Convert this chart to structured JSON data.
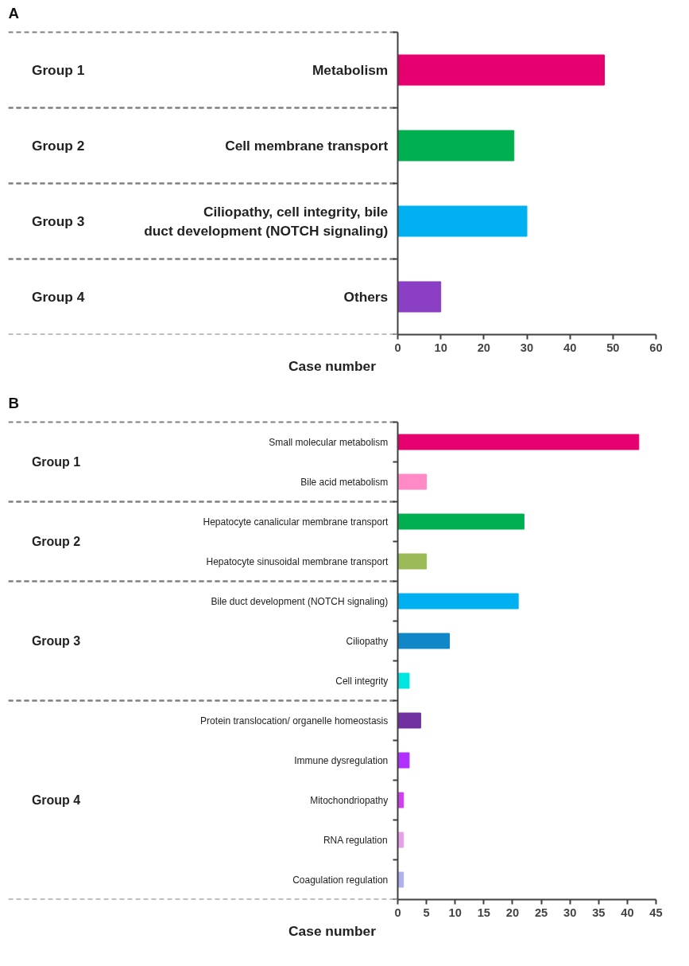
{
  "chart_data": [
    {
      "type": "bar",
      "orientation": "horizontal",
      "xlabel": "Case number",
      "xlim": [
        0,
        60
      ],
      "xticks": [
        0,
        10,
        20,
        30,
        40,
        50,
        60
      ],
      "grid": false,
      "categories": [
        "Metabolism",
        "Cell membrane transport",
        "Ciliopathy, cell integrity, bile duct development (NOTCH signaling)",
        "Others"
      ],
      "series": [
        {
          "colors": [
            "#e6006f",
            null,
            null,
            null
          ],
          "values": [
            48,
            null,
            null,
            null
          ]
        },
        {
          "colors": [
            null,
            "#00b050",
            null,
            null
          ],
          "values": [
            null,
            27,
            null,
            null
          ]
        },
        {
          "colors": [
            null,
            null,
            "#00b0f0",
            null
          ],
          "values": [
            null,
            null,
            30,
            null
          ]
        },
        {
          "colors": [
            null,
            null,
            null,
            "#8b3fc4"
          ],
          "values": [
            null,
            null,
            null,
            10
          ]
        }
      ],
      "annotations": [
        "A",
        "Group 1",
        "Group 2",
        "Group 3",
        "Group 4"
      ]
    },
    {
      "type": "bar",
      "orientation": "horizontal",
      "xlabel": "Case number",
      "xlim": [
        0,
        45
      ],
      "xticks": [
        0,
        5,
        10,
        15,
        20,
        25,
        30,
        35,
        40,
        45
      ],
      "grid": false,
      "categories": [
        "Small molecular metabolism",
        "Bile acid metabolism",
        "Hepatocyte canalicular membrane transport",
        "Hepatocyte sinusoidal membrane transport",
        "Bile duct development (NOTCH signaling)",
        "Ciliopathy",
        "Cell integrity",
        "Protein translocation/ organelle homeostasis",
        "Immune dysregulation",
        "Mitochondriopathy",
        "RNA regulation",
        "Coagulation regulation"
      ],
      "series": [
        {
          "colors": [
            "#e6006f",
            "#ff8ac6",
            null,
            null,
            null,
            null,
            null,
            null,
            null,
            null,
            null,
            null
          ],
          "values": [
            42,
            5,
            null,
            null,
            null,
            null,
            null,
            null,
            null,
            null,
            null,
            null
          ]
        },
        {
          "colors": [
            null,
            null,
            "#00b050",
            "#9bbb59",
            null,
            null,
            null,
            null,
            null,
            null,
            null,
            null
          ],
          "values": [
            null,
            null,
            22,
            5,
            null,
            null,
            null,
            null,
            null,
            null,
            null,
            null
          ]
        },
        {
          "colors": [
            null,
            null,
            null,
            null,
            "#00b0f0",
            "#1287c7",
            "#00e5e0",
            null,
            null,
            null,
            null,
            null
          ],
          "values": [
            null,
            null,
            null,
            null,
            21,
            9,
            2,
            null,
            null,
            null,
            null,
            null
          ]
        },
        {
          "colors": [
            null,
            null,
            null,
            null,
            null,
            null,
            null,
            "#7030a0",
            "#b030ff",
            "#d040f0",
            "#e8a0e8",
            "#b0b0f0"
          ],
          "values": [
            null,
            null,
            null,
            null,
            null,
            null,
            null,
            4,
            2,
            1,
            1,
            1
          ]
        }
      ],
      "annotations": [
        "B",
        "Group 1",
        "Group 2",
        "Group 3",
        "Group 4"
      ]
    }
  ]
}
